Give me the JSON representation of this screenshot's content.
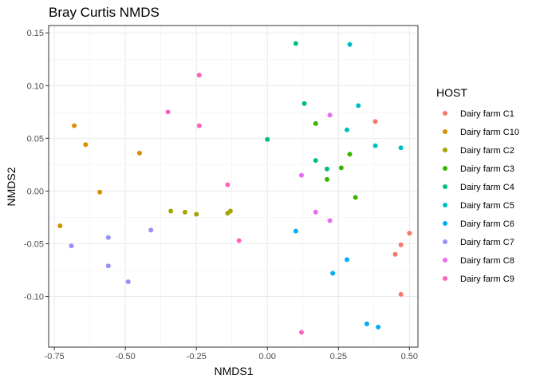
{
  "chart_data": {
    "type": "scatter",
    "title": "Bray Curtis NMDS",
    "xlabel": "NMDS1",
    "ylabel": "NMDS2",
    "xlim": [
      -0.77,
      0.53
    ],
    "ylim": [
      -0.148,
      0.157
    ],
    "x_ticks": [
      -0.75,
      -0.5,
      -0.25,
      0.0,
      0.25,
      0.5
    ],
    "x_tick_labels": [
      "-0.75",
      "-0.50",
      "-0.25",
      "0.00",
      "0.25",
      "0.50"
    ],
    "y_ticks": [
      -0.1,
      -0.05,
      0.0,
      0.05,
      0.1,
      0.15
    ],
    "y_tick_labels": [
      "-0.10",
      "-0.05",
      "0.00",
      "0.05",
      "0.10",
      "0.15"
    ],
    "grid": true,
    "legend_title": "HOST",
    "legend_position": "right",
    "series": [
      {
        "name": "Dairy farm C1",
        "color": "#F8766D",
        "points": [
          [
            0.38,
            0.066
          ],
          [
            0.5,
            -0.04
          ],
          [
            0.47,
            -0.051
          ],
          [
            0.45,
            -0.06
          ],
          [
            0.47,
            -0.098
          ]
        ]
      },
      {
        "name": "Dairy farm C10",
        "color": "#D89000",
        "points": [
          [
            -0.68,
            0.062
          ],
          [
            -0.64,
            0.044
          ],
          [
            -0.45,
            0.036
          ],
          [
            -0.59,
            -0.001
          ],
          [
            -0.73,
            -0.033
          ]
        ]
      },
      {
        "name": "Dairy farm C2",
        "color": "#A3A500",
        "points": [
          [
            -0.34,
            -0.019
          ],
          [
            -0.29,
            -0.02
          ],
          [
            -0.25,
            -0.022
          ],
          [
            -0.14,
            -0.021
          ],
          [
            -0.13,
            -0.019
          ]
        ]
      },
      {
        "name": "Dairy farm C3",
        "color": "#39B600",
        "points": [
          [
            0.17,
            0.064
          ],
          [
            0.29,
            0.035
          ],
          [
            0.26,
            0.022
          ],
          [
            0.21,
            0.011
          ],
          [
            0.31,
            -0.006
          ]
        ]
      },
      {
        "name": "Dairy farm C4",
        "color": "#00BF7D",
        "points": [
          [
            0.1,
            0.14
          ],
          [
            0.13,
            0.083
          ],
          [
            0.0,
            0.049
          ],
          [
            0.17,
            0.029
          ],
          [
            0.21,
            0.021
          ]
        ]
      },
      {
        "name": "Dairy farm C5",
        "color": "#00BFC4",
        "points": [
          [
            0.29,
            0.139
          ],
          [
            0.32,
            0.081
          ],
          [
            0.28,
            0.058
          ],
          [
            0.38,
            0.043
          ],
          [
            0.47,
            0.041
          ]
        ]
      },
      {
        "name": "Dairy farm C6",
        "color": "#00B0F6",
        "points": [
          [
            0.1,
            -0.038
          ],
          [
            0.28,
            -0.065
          ],
          [
            0.23,
            -0.078
          ],
          [
            0.35,
            -0.126
          ],
          [
            0.39,
            -0.129
          ]
        ]
      },
      {
        "name": "Dairy farm C7",
        "color": "#9590FF",
        "points": [
          [
            -0.41,
            -0.037
          ],
          [
            -0.56,
            -0.044
          ],
          [
            -0.69,
            -0.052
          ],
          [
            -0.56,
            -0.071
          ],
          [
            -0.49,
            -0.086
          ]
        ]
      },
      {
        "name": "Dairy farm C8",
        "color": "#E76BF3",
        "points": [
          [
            0.22,
            0.072
          ],
          [
            0.12,
            0.015
          ],
          [
            0.17,
            -0.02
          ],
          [
            0.22,
            -0.028
          ]
        ]
      },
      {
        "name": "Dairy farm C9",
        "color": "#FF62BC",
        "points": [
          [
            -0.24,
            0.11
          ],
          [
            -0.35,
            0.075
          ],
          [
            -0.24,
            0.062
          ],
          [
            -0.14,
            0.006
          ],
          [
            -0.1,
            -0.047
          ],
          [
            0.12,
            -0.134
          ]
        ]
      }
    ]
  }
}
